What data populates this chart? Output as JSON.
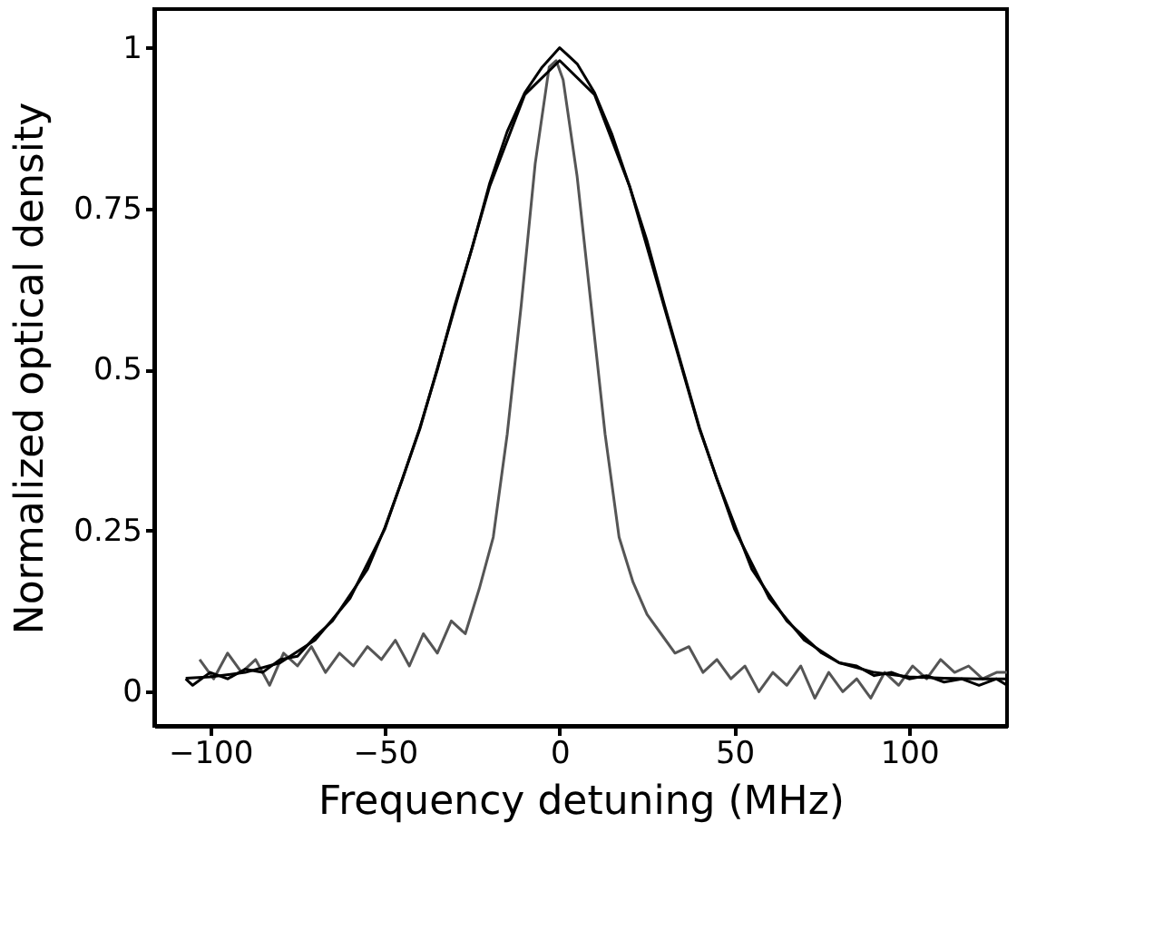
{
  "chart_data": {
    "type": "line",
    "xlabel": "Frequency detuning (MHz)",
    "ylabel": "Normalized optical density",
    "xlim": [
      -116,
      128
    ],
    "xticks": [
      -100,
      -50,
      0,
      50,
      100
    ],
    "ylim": [
      -0.053,
      1.06
    ],
    "yticks": [
      0,
      0.25,
      0.5,
      0.75,
      1
    ],
    "grid": false,
    "legend": false,
    "series": [
      {
        "color": "#555555",
        "x": [
          -103,
          -99,
          -95,
          -91,
          -87,
          -83,
          -79,
          -75,
          -71,
          -67,
          -63,
          -59,
          -55,
          -51,
          -47,
          -43,
          -39,
          -35,
          -31,
          -27,
          -23,
          -19,
          -15,
          -11,
          -7,
          -3,
          -1,
          1,
          5,
          9,
          13,
          17,
          21,
          25,
          29,
          33,
          37,
          41,
          45,
          49,
          53,
          57,
          61,
          65,
          69,
          73,
          77,
          81,
          85,
          89,
          93,
          97,
          101,
          105,
          109,
          113,
          117,
          121,
          125,
          128
        ],
        "values": [
          0.05,
          0.02,
          0.06,
          0.03,
          0.05,
          0.01,
          0.06,
          0.04,
          0.07,
          0.03,
          0.06,
          0.04,
          0.07,
          0.05,
          0.08,
          0.04,
          0.09,
          0.06,
          0.11,
          0.09,
          0.16,
          0.24,
          0.4,
          0.6,
          0.82,
          0.97,
          0.98,
          0.95,
          0.8,
          0.6,
          0.4,
          0.24,
          0.17,
          0.12,
          0.09,
          0.06,
          0.07,
          0.03,
          0.05,
          0.02,
          0.04,
          0.0,
          0.03,
          0.01,
          0.04,
          -0.01,
          0.03,
          0.0,
          0.02,
          -0.01,
          0.03,
          0.01,
          0.04,
          0.02,
          0.05,
          0.03,
          0.04,
          0.02,
          0.03,
          0.03
        ]
      },
      {
        "color": "#000000",
        "x": [
          -107,
          -105,
          -100,
          -95,
          -90,
          -85,
          -80,
          -75,
          -70,
          -65,
          -60,
          -55,
          -50,
          -45,
          -40,
          -35,
          -30,
          -25,
          -20,
          -15,
          -10,
          -5,
          0,
          2,
          5,
          10,
          15,
          20,
          25,
          30,
          35,
          40,
          45,
          50,
          55,
          60,
          65,
          70,
          75,
          80,
          85,
          90,
          95,
          100,
          105,
          110,
          115,
          120,
          125,
          128
        ],
        "values": [
          0.02,
          0.01,
          0.03,
          0.02,
          0.035,
          0.03,
          0.05,
          0.055,
          0.085,
          0.11,
          0.15,
          0.19,
          0.255,
          0.33,
          0.41,
          0.5,
          0.6,
          0.69,
          0.79,
          0.87,
          0.93,
          0.97,
          1.0,
          0.99,
          0.975,
          0.93,
          0.865,
          0.785,
          0.7,
          0.6,
          0.505,
          0.41,
          0.33,
          0.26,
          0.19,
          0.15,
          0.11,
          0.085,
          0.06,
          0.045,
          0.04,
          0.025,
          0.03,
          0.02,
          0.025,
          0.015,
          0.02,
          0.01,
          0.02,
          0.01
        ]
      },
      {
        "color": "#000000",
        "x": [
          -107,
          -100,
          -90,
          -80,
          -70,
          -60,
          -50,
          -40,
          -30,
          -20,
          -10,
          0,
          10,
          20,
          30,
          40,
          50,
          60,
          70,
          80,
          90,
          100,
          110,
          120,
          128
        ],
        "values": [
          0.021,
          0.023,
          0.03,
          0.045,
          0.08,
          0.145,
          0.253,
          0.408,
          0.596,
          0.785,
          0.927,
          0.98,
          0.927,
          0.785,
          0.596,
          0.408,
          0.253,
          0.145,
          0.08,
          0.045,
          0.03,
          0.023,
          0.021,
          0.02,
          0.02
        ]
      }
    ]
  }
}
